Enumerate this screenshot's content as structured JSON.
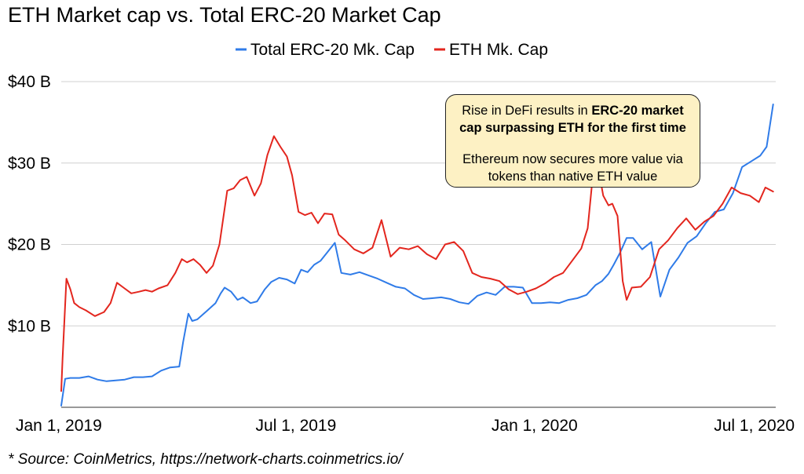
{
  "title": "ETH Market cap vs. Total ERC-20 Market Cap",
  "source": "* Source: CoinMetrics, https://network-charts.coinmetrics.io/",
  "annotation": {
    "line1_prefix": "Rise in DeFi results in ",
    "line1_bold": "ERC-20 market cap surpassing ETH for the first time",
    "line2": "Ethereum now secures more value via tokens than native ETH value"
  },
  "colors": {
    "erc20": "#2f7be8",
    "eth": "#e3261e",
    "grid": "#d0d0d0",
    "axis": "#333333"
  },
  "chart_data": {
    "type": "line",
    "title": "ETH Market cap vs. Total ERC-20 Market Cap",
    "xlabel": "",
    "ylabel": "",
    "ylim": [
      0,
      40
    ],
    "y_unit": "B",
    "yticks": [
      10,
      20,
      30,
      40
    ],
    "ytick_labels": [
      "$10 B",
      "$20 B",
      "$30 B",
      "$40 B"
    ],
    "xlim": [
      "2019-01-01",
      "2020-07-05"
    ],
    "xticks": [
      "2019-01-01",
      "2019-07-01",
      "2020-01-01",
      "2020-07-01"
    ],
    "xtick_labels": [
      "Jan 1, 2019",
      "Jul 1, 2019",
      "Jan 1, 2020",
      "Jul 1, 2020"
    ],
    "grid": true,
    "legend": "top",
    "series": [
      {
        "name": "Total ERC-20 Mk. Cap",
        "color": "#2f7be8",
        "x": [
          "2019-01-01",
          "2019-01-04",
          "2019-01-08",
          "2019-01-15",
          "2019-01-22",
          "2019-01-29",
          "2019-02-05",
          "2019-02-12",
          "2019-02-19",
          "2019-02-26",
          "2019-03-05",
          "2019-03-12",
          "2019-03-19",
          "2019-03-26",
          "2019-04-02",
          "2019-04-05",
          "2019-04-09",
          "2019-04-12",
          "2019-04-16",
          "2019-04-23",
          "2019-04-30",
          "2019-05-04",
          "2019-05-07",
          "2019-05-12",
          "2019-05-17",
          "2019-05-21",
          "2019-05-27",
          "2019-06-01",
          "2019-06-07",
          "2019-06-12",
          "2019-06-18",
          "2019-06-24",
          "2019-06-30",
          "2019-07-05",
          "2019-07-10",
          "2019-07-15",
          "2019-07-20",
          "2019-07-25",
          "2019-07-31",
          "2019-08-05",
          "2019-08-12",
          "2019-08-19",
          "2019-08-26",
          "2019-09-02",
          "2019-09-09",
          "2019-09-16",
          "2019-09-23",
          "2019-09-30",
          "2019-10-07",
          "2019-10-14",
          "2019-10-21",
          "2019-10-28",
          "2019-11-04",
          "2019-11-11",
          "2019-11-18",
          "2019-11-25",
          "2019-12-02",
          "2019-12-09",
          "2019-12-16",
          "2019-12-23",
          "2019-12-30",
          "2020-01-06",
          "2020-01-13",
          "2020-01-20",
          "2020-01-27",
          "2020-02-03",
          "2020-02-10",
          "2020-02-17",
          "2020-02-22",
          "2020-02-27",
          "2020-03-02",
          "2020-03-07",
          "2020-03-12",
          "2020-03-17",
          "2020-03-24",
          "2020-03-31",
          "2020-04-07",
          "2020-04-14",
          "2020-04-21",
          "2020-04-28",
          "2020-05-05",
          "2020-05-12",
          "2020-05-19",
          "2020-05-26",
          "2020-06-02",
          "2020-06-09",
          "2020-06-16",
          "2020-06-23",
          "2020-06-28",
          "2020-07-03"
        ],
        "values": [
          0.2,
          3.5,
          3.6,
          3.6,
          3.8,
          3.4,
          3.2,
          3.3,
          3.4,
          3.7,
          3.7,
          3.8,
          4.5,
          4.9,
          5.0,
          8.0,
          11.5,
          10.6,
          10.8,
          11.8,
          12.8,
          14.0,
          14.7,
          14.2,
          13.2,
          13.5,
          12.8,
          13.0,
          14.5,
          15.4,
          15.9,
          15.7,
          15.2,
          16.9,
          16.6,
          17.5,
          18.0,
          19.0,
          20.2,
          16.5,
          16.3,
          16.6,
          16.2,
          15.8,
          15.3,
          14.8,
          14.6,
          13.8,
          13.3,
          13.4,
          13.5,
          13.3,
          12.9,
          12.7,
          13.7,
          14.1,
          13.8,
          14.8,
          14.8,
          14.7,
          12.8,
          12.8,
          12.9,
          12.8,
          13.2,
          13.4,
          13.8,
          15.0,
          15.5,
          16.4,
          17.5,
          19.0,
          20.8,
          20.8,
          19.4,
          20.3,
          13.6,
          16.9,
          18.4,
          20.2,
          21.0,
          22.6,
          24.0,
          24.3,
          26.3,
          29.5,
          30.2,
          30.9,
          32.0,
          37.2
        ]
      },
      {
        "name": "ETH Mk. Cap",
        "color": "#e3261e",
        "x": [
          "2019-01-01",
          "2019-01-02",
          "2019-01-05",
          "2019-01-08",
          "2019-01-11",
          "2019-01-15",
          "2019-01-20",
          "2019-01-27",
          "2019-02-03",
          "2019-02-08",
          "2019-02-13",
          "2019-02-18",
          "2019-02-24",
          "2019-03-02",
          "2019-03-07",
          "2019-03-12",
          "2019-03-17",
          "2019-03-24",
          "2019-03-30",
          "2019-04-04",
          "2019-04-08",
          "2019-04-13",
          "2019-04-18",
          "2019-04-23",
          "2019-04-28",
          "2019-05-03",
          "2019-05-09",
          "2019-05-14",
          "2019-05-19",
          "2019-05-24",
          "2019-05-30",
          "2019-06-04",
          "2019-06-09",
          "2019-06-14",
          "2019-06-19",
          "2019-06-24",
          "2019-06-28",
          "2019-07-03",
          "2019-07-08",
          "2019-07-13",
          "2019-07-18",
          "2019-07-23",
          "2019-07-29",
          "2019-08-03",
          "2019-08-08",
          "2019-08-15",
          "2019-08-22",
          "2019-08-29",
          "2019-09-05",
          "2019-09-12",
          "2019-09-19",
          "2019-09-26",
          "2019-10-03",
          "2019-10-10",
          "2019-10-17",
          "2019-10-24",
          "2019-10-31",
          "2019-11-07",
          "2019-11-14",
          "2019-11-21",
          "2019-11-28",
          "2019-12-05",
          "2019-12-12",
          "2019-12-19",
          "2019-12-26",
          "2020-01-02",
          "2020-01-09",
          "2020-01-16",
          "2020-01-23",
          "2020-01-30",
          "2020-02-06",
          "2020-02-11",
          "2020-02-15",
          "2020-02-19",
          "2020-02-23",
          "2020-02-27",
          "2020-03-01",
          "2020-03-05",
          "2020-03-09",
          "2020-03-12",
          "2020-03-16",
          "2020-03-23",
          "2020-03-30",
          "2020-04-06",
          "2020-04-13",
          "2020-04-20",
          "2020-04-27",
          "2020-05-04",
          "2020-05-11",
          "2020-05-18",
          "2020-05-25",
          "2020-06-01",
          "2020-06-08",
          "2020-06-15",
          "2020-06-22",
          "2020-06-27",
          "2020-07-03"
        ],
        "values": [
          2.0,
          6.0,
          15.8,
          14.5,
          12.8,
          12.3,
          11.9,
          11.2,
          11.7,
          12.8,
          15.3,
          14.7,
          14.0,
          14.2,
          14.4,
          14.2,
          14.6,
          15.0,
          16.5,
          18.2,
          17.8,
          18.2,
          17.5,
          16.5,
          17.4,
          20.0,
          26.6,
          26.9,
          27.9,
          28.3,
          26.0,
          27.5,
          31.0,
          33.3,
          32.0,
          30.8,
          28.5,
          24.0,
          23.6,
          23.9,
          22.6,
          23.8,
          23.7,
          21.2,
          20.5,
          19.4,
          18.9,
          19.6,
          23.0,
          18.5,
          19.6,
          19.4,
          19.8,
          18.8,
          18.2,
          20.0,
          20.3,
          19.2,
          16.5,
          16.0,
          15.8,
          15.5,
          14.5,
          13.9,
          14.2,
          14.6,
          15.2,
          16.0,
          16.5,
          18.0,
          19.5,
          22.0,
          28.5,
          29.5,
          26.0,
          24.8,
          25.0,
          23.5,
          15.5,
          13.2,
          14.7,
          14.8,
          16.0,
          19.4,
          20.5,
          22.0,
          23.2,
          21.8,
          22.8,
          23.5,
          25.0,
          27.0,
          26.3,
          26.0,
          25.2,
          27.0,
          26.5
        ]
      }
    ]
  }
}
